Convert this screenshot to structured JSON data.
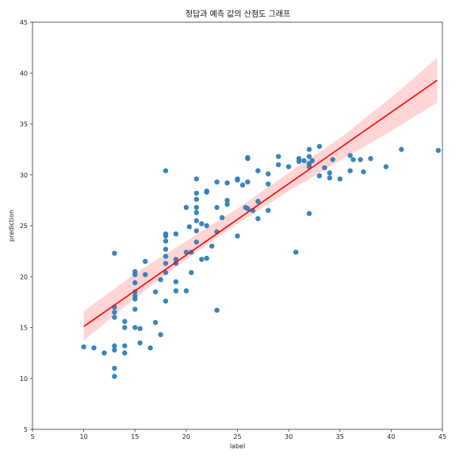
{
  "chart_data": {
    "type": "scatter",
    "title": "정답과 예측 값의 산점도 그래프",
    "xlabel": "label",
    "ylabel": "prediction",
    "xlim": [
      5,
      45
    ],
    "ylim": [
      5,
      45
    ],
    "xticks": [
      "5",
      "10",
      "15",
      "20",
      "25",
      "30",
      "35",
      "40",
      "45"
    ],
    "yticks": [
      "5",
      "10",
      "15",
      "20",
      "25",
      "30",
      "35",
      "40",
      "45"
    ],
    "grid": false,
    "legend": "none",
    "colors": {
      "points": "#2f7db8",
      "line": "#ff0000",
      "band": "#ffb3b3"
    },
    "regression": {
      "x": [
        10,
        44.5
      ],
      "y": [
        15.1,
        39.3
      ]
    },
    "confidence_band": {
      "x": [
        10,
        15,
        20,
        25,
        30,
        35,
        40,
        44.5
      ],
      "lower": [
        13.7,
        17.9,
        21.7,
        25.2,
        28.4,
        31.4,
        34.3,
        37.1
      ],
      "upper": [
        16.6,
        20.3,
        23.5,
        26.7,
        30.2,
        33.6,
        37.6,
        41.5
      ]
    },
    "points": [
      [
        10,
        13.1
      ],
      [
        11,
        13.0
      ],
      [
        12,
        12.5
      ],
      [
        13,
        22.3
      ],
      [
        13,
        17.0
      ],
      [
        13,
        16.5
      ],
      [
        13,
        16.0
      ],
      [
        13,
        13.2
      ],
      [
        13,
        12.8
      ],
      [
        13,
        11.0
      ],
      [
        13,
        10.2
      ],
      [
        14,
        15.6
      ],
      [
        14,
        15.0
      ],
      [
        14,
        13.2
      ],
      [
        14,
        12.5
      ],
      [
        15,
        20.5
      ],
      [
        15,
        20.2
      ],
      [
        15,
        19.4
      ],
      [
        15,
        18.5
      ],
      [
        15,
        18.1
      ],
      [
        15,
        17.8
      ],
      [
        15,
        16.8
      ],
      [
        15,
        15.0
      ],
      [
        15.5,
        14.9
      ],
      [
        15.5,
        13.5
      ],
      [
        16,
        21.5
      ],
      [
        16,
        20.2
      ],
      [
        16.5,
        13.0
      ],
      [
        17,
        18.5
      ],
      [
        17,
        15.5
      ],
      [
        17.5,
        19.7
      ],
      [
        17.5,
        14.3
      ],
      [
        18,
        30.4
      ],
      [
        18,
        24.2
      ],
      [
        18,
        24.0
      ],
      [
        18,
        23.5
      ],
      [
        18,
        22.7
      ],
      [
        18,
        22.0
      ],
      [
        18,
        21.3
      ],
      [
        18,
        20.4
      ],
      [
        18,
        17.6
      ],
      [
        19,
        24.2
      ],
      [
        19,
        21.7
      ],
      [
        19,
        21.3
      ],
      [
        19,
        19.5
      ],
      [
        19,
        18.6
      ],
      [
        20,
        26.8
      ],
      [
        20,
        22.4
      ],
      [
        20,
        18.6
      ],
      [
        20.3,
        24.9
      ],
      [
        20.5,
        22.4
      ],
      [
        20.5,
        20.4
      ],
      [
        21,
        29.6
      ],
      [
        21,
        28.2
      ],
      [
        21,
        27.6
      ],
      [
        21,
        26.8
      ],
      [
        21,
        26.3
      ],
      [
        21,
        25.5
      ],
      [
        21,
        24.5
      ],
      [
        21,
        23.4
      ],
      [
        21.5,
        25.2
      ],
      [
        21.5,
        21.7
      ],
      [
        22,
        28.4
      ],
      [
        22,
        28.3
      ],
      [
        22,
        25.0
      ],
      [
        22,
        21.8
      ],
      [
        22.5,
        23.0
      ],
      [
        23,
        29.3
      ],
      [
        23,
        26.8
      ],
      [
        23,
        24.4
      ],
      [
        23,
        16.7
      ],
      [
        23.5,
        25.8
      ],
      [
        24,
        29.2
      ],
      [
        24,
        27.5
      ],
      [
        24,
        27.1
      ],
      [
        25,
        29.6
      ],
      [
        25,
        29.5
      ],
      [
        25,
        24.0
      ],
      [
        25.5,
        29.0
      ],
      [
        25.8,
        26.8
      ],
      [
        26,
        31.7
      ],
      [
        26,
        31.6
      ],
      [
        26,
        29.3
      ],
      [
        26,
        26.7
      ],
      [
        26.5,
        26.5
      ],
      [
        27,
        30.4
      ],
      [
        27,
        27.4
      ],
      [
        27,
        25.7
      ],
      [
        28,
        30.1
      ],
      [
        28,
        29.1
      ],
      [
        28,
        26.5
      ],
      [
        29,
        31.8
      ],
      [
        29,
        31.0
      ],
      [
        30,
        30.8
      ],
      [
        30.7,
        22.4
      ],
      [
        31,
        31.6
      ],
      [
        31,
        31.3
      ],
      [
        31.5,
        31.4
      ],
      [
        32,
        32.5
      ],
      [
        32,
        31.8
      ],
      [
        32,
        31.1
      ],
      [
        32,
        30.8
      ],
      [
        32,
        26.2
      ],
      [
        32.3,
        31.4
      ],
      [
        33,
        32.8
      ],
      [
        33,
        29.9
      ],
      [
        33.5,
        30.7
      ],
      [
        34,
        30.2
      ],
      [
        34,
        29.7
      ],
      [
        34.3,
        31.5
      ],
      [
        35,
        29.6
      ],
      [
        36,
        31.9
      ],
      [
        36,
        30.4
      ],
      [
        36.3,
        31.5
      ],
      [
        37,
        31.5
      ],
      [
        37.3,
        30.3
      ],
      [
        38,
        31.6
      ],
      [
        39.5,
        30.8
      ],
      [
        41,
        32.5
      ],
      [
        44.6,
        32.4
      ]
    ]
  }
}
